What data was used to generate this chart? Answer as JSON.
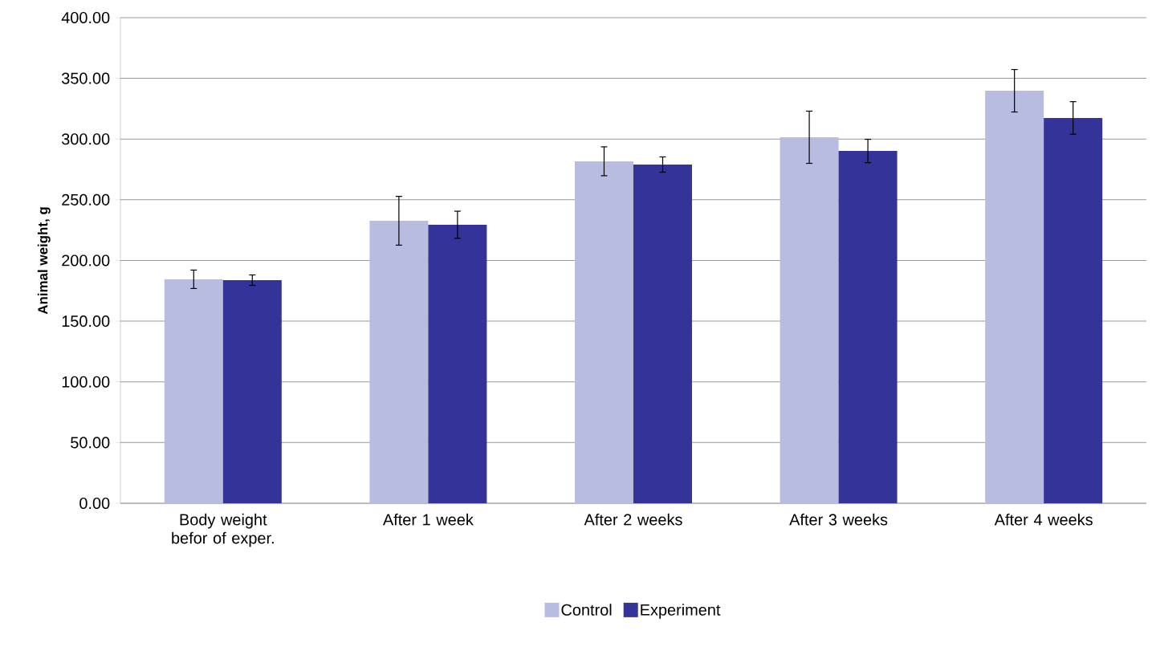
{
  "chart_data": {
    "type": "bar",
    "ylabel": "Animal weight, g",
    "categories": [
      "Body weight befor of exper.",
      "After 1 week",
      "After 2 weeks",
      "After 3 weeks",
      "After 4 weeks"
    ],
    "series": [
      {
        "name": "Control",
        "color": "#b8bce0",
        "values": [
          184.5,
          232.7,
          281.7,
          301.5,
          339.8
        ],
        "errors": [
          7.6,
          20.1,
          11.9,
          21.5,
          17.5
        ]
      },
      {
        "name": "Experiment",
        "color": "#343399",
        "values": [
          183.8,
          229.4,
          279.0,
          290.2,
          317.4
        ],
        "errors": [
          4.3,
          11.2,
          6.3,
          9.6,
          13.4
        ]
      }
    ],
    "ylim": [
      0,
      400
    ],
    "yticks": [
      {
        "value": 0,
        "label": "0.00"
      },
      {
        "value": 50,
        "label": "50.00"
      },
      {
        "value": 100,
        "label": "100.00"
      },
      {
        "value": 150,
        "label": "150.00"
      },
      {
        "value": 200,
        "label": "200.00"
      },
      {
        "value": 250,
        "label": "250.00"
      },
      {
        "value": 300,
        "label": "300.00"
      },
      {
        "value": 350,
        "label": "350.00"
      },
      {
        "value": 400,
        "label": "400.00"
      }
    ],
    "grid": "y",
    "legend": "bottom"
  }
}
